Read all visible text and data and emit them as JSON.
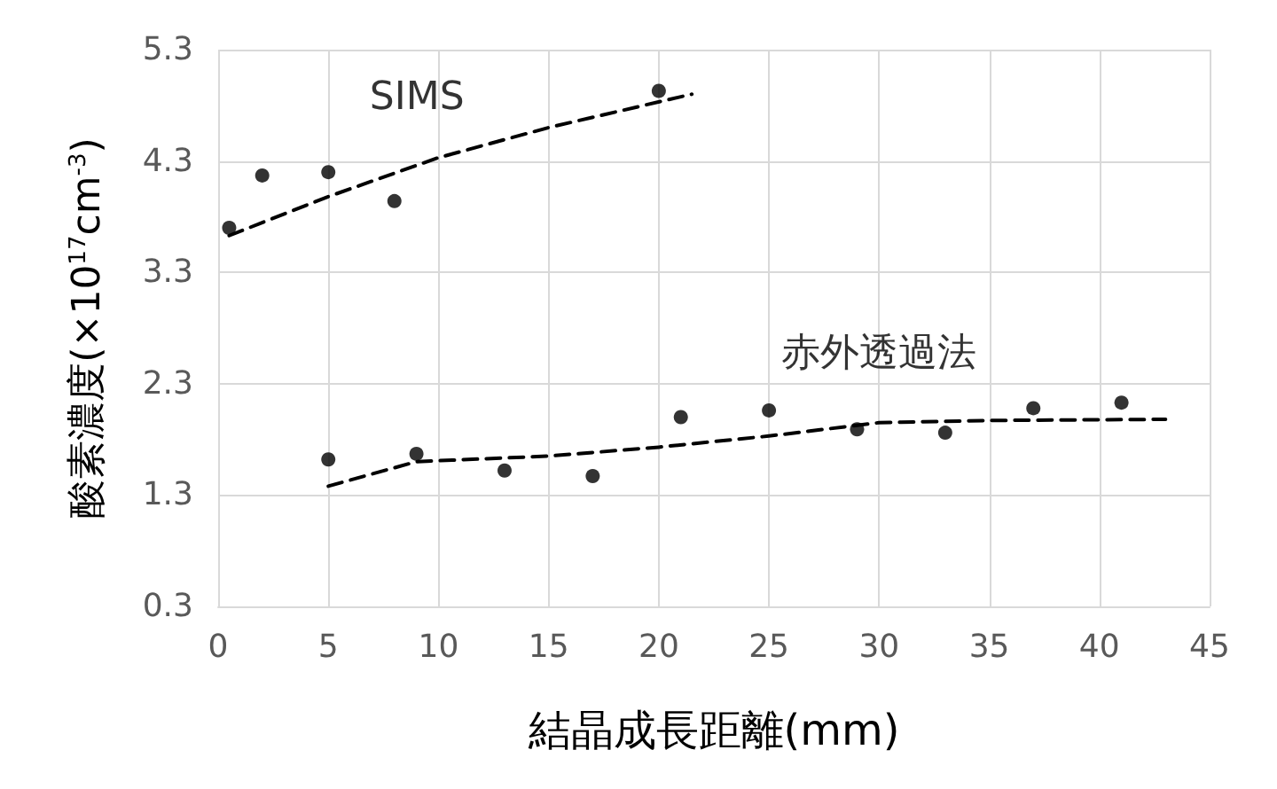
{
  "chart_data": {
    "type": "scatter",
    "xlabel": "結晶成長距離(mm)",
    "ylabel": "酸素濃度(×10$^{17}$cm$^{-3}$)",
    "xlim": [
      0,
      45
    ],
    "xticks": [
      0,
      5,
      10,
      15,
      20,
      25,
      30,
      35,
      40,
      45
    ],
    "ylim": [
      0.3,
      5.3
    ],
    "yticks": [
      0.3,
      1.3,
      2.3,
      3.3,
      4.3,
      5.3
    ],
    "grid": true,
    "series": [
      {
        "name": "SIMS",
        "color": "#000000",
        "marker": "circle",
        "x": [
          0.5,
          2,
          5,
          8,
          20
        ],
        "values": [
          3.7,
          4.17,
          4.2,
          3.94,
          4.93
        ]
      },
      {
        "name": "赤外透過法",
        "color": "#000000",
        "marker": "circle",
        "x": [
          5,
          9,
          13,
          17,
          21,
          25,
          29,
          33,
          37,
          41
        ],
        "values": [
          1.62,
          1.67,
          1.52,
          1.47,
          2.0,
          2.06,
          1.89,
          1.86,
          2.08,
          2.13
        ]
      },
      {
        "type": "line",
        "color": "#000000",
        "marker": "none",
        "line_style": "dashed",
        "x": [
          0.5,
          5,
          10,
          15,
          21.5
        ],
        "values": [
          3.63,
          3.98,
          4.33,
          4.6,
          4.9
        ]
      },
      {
        "type": "line",
        "color": "#000000",
        "marker": "none",
        "line_style": "dashed",
        "x": [
          5,
          9,
          15,
          20,
          25,
          30,
          35,
          43
        ],
        "values": [
          1.38,
          1.6,
          1.65,
          1.73,
          1.83,
          1.95,
          1.97,
          1.98
        ]
      }
    ]
  }
}
